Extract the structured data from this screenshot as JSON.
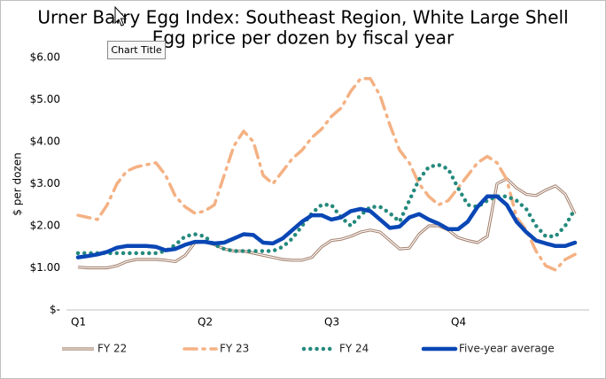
{
  "chart_data": {
    "type": "line",
    "title": "Urner Barry Egg Index: Southeast Region, White Large Shell",
    "subtitle": "Egg price per dozen by fiscal year",
    "tooltip": "Chart Title",
    "y_label": "$ per dozen",
    "categories": [
      "Q1",
      null,
      null,
      null,
      null,
      null,
      null,
      null,
      null,
      null,
      null,
      null,
      null,
      "Q2",
      null,
      null,
      null,
      null,
      null,
      null,
      null,
      null,
      null,
      null,
      null,
      null,
      "Q3",
      null,
      null,
      null,
      null,
      null,
      null,
      null,
      null,
      null,
      null,
      null,
      null,
      "Q4",
      null,
      null,
      null,
      null,
      null,
      null,
      null,
      null,
      null,
      null,
      null,
      null
    ],
    "ylim": [
      0,
      6
    ],
    "yticks": [
      {
        "value": 0,
        "label": "$-"
      },
      {
        "value": 1,
        "label": "$1.00"
      },
      {
        "value": 2,
        "label": "$2.00"
      },
      {
        "value": 3,
        "label": "$3.00"
      },
      {
        "value": 4,
        "label": "$4.00"
      },
      {
        "value": 5,
        "label": "$5.00"
      },
      {
        "value": 6,
        "label": "$6.00"
      }
    ],
    "grid": false,
    "legend": "bottom",
    "series": [
      {
        "name": "FY 22",
        "color": "#a3806c",
        "style": "double",
        "values": [
          1.02,
          1.0,
          1.0,
          1.0,
          1.05,
          1.15,
          1.2,
          1.2,
          1.2,
          1.18,
          1.15,
          1.3,
          1.6,
          1.62,
          1.55,
          1.45,
          1.4,
          1.4,
          1.35,
          1.3,
          1.25,
          1.2,
          1.18,
          1.18,
          1.25,
          1.5,
          1.65,
          1.68,
          1.75,
          1.85,
          1.9,
          1.85,
          1.65,
          1.45,
          1.47,
          1.8,
          2.0,
          2.0,
          1.9,
          1.72,
          1.65,
          1.6,
          1.75,
          3.0,
          3.12,
          2.9,
          2.75,
          2.72,
          2.85,
          2.95,
          2.75,
          2.28
        ]
      },
      {
        "name": "FY 23",
        "color": "#f4b183",
        "style": "dashdot",
        "values": [
          2.25,
          2.2,
          2.15,
          2.5,
          3.0,
          3.3,
          3.4,
          3.45,
          3.5,
          3.2,
          2.7,
          2.45,
          2.3,
          2.35,
          2.5,
          3.2,
          3.9,
          4.25,
          4.0,
          3.2,
          3.0,
          3.3,
          3.6,
          3.8,
          4.1,
          4.3,
          4.6,
          4.8,
          5.2,
          5.5,
          5.5,
          5.1,
          4.4,
          3.8,
          3.5,
          3.0,
          2.7,
          2.5,
          2.6,
          2.9,
          3.2,
          3.5,
          3.65,
          3.5,
          3.1,
          2.2,
          1.9,
          1.4,
          1.05,
          0.95,
          1.2,
          1.32
        ]
      },
      {
        "name": "FY 24",
        "color": "#24897d",
        "style": "dotted",
        "values": [
          1.35,
          1.35,
          1.35,
          1.35,
          1.35,
          1.35,
          1.35,
          1.35,
          1.35,
          1.4,
          1.55,
          1.75,
          1.8,
          1.75,
          1.55,
          1.45,
          1.4,
          1.4,
          1.4,
          1.4,
          1.4,
          1.5,
          1.7,
          2.0,
          2.3,
          2.5,
          2.5,
          2.2,
          2.0,
          2.25,
          2.45,
          2.45,
          2.3,
          2.1,
          2.6,
          3.1,
          3.4,
          3.45,
          3.35,
          2.9,
          2.5,
          2.45,
          2.6,
          2.7,
          2.7,
          2.6,
          2.4,
          2.0,
          1.75,
          1.75,
          2.0,
          2.4
        ]
      },
      {
        "name": "Five-year average",
        "color": "#0a47b5",
        "style": "solid",
        "values": [
          1.25,
          1.28,
          1.32,
          1.38,
          1.48,
          1.52,
          1.52,
          1.52,
          1.5,
          1.42,
          1.45,
          1.55,
          1.62,
          1.62,
          1.58,
          1.6,
          1.7,
          1.8,
          1.78,
          1.6,
          1.58,
          1.7,
          1.9,
          2.1,
          2.25,
          2.25,
          2.15,
          2.2,
          2.35,
          2.4,
          2.35,
          2.15,
          1.95,
          1.98,
          2.2,
          2.28,
          2.15,
          2.05,
          1.92,
          1.92,
          2.1,
          2.45,
          2.7,
          2.7,
          2.5,
          2.1,
          1.85,
          1.65,
          1.58,
          1.52,
          1.52,
          1.6
        ]
      }
    ]
  }
}
